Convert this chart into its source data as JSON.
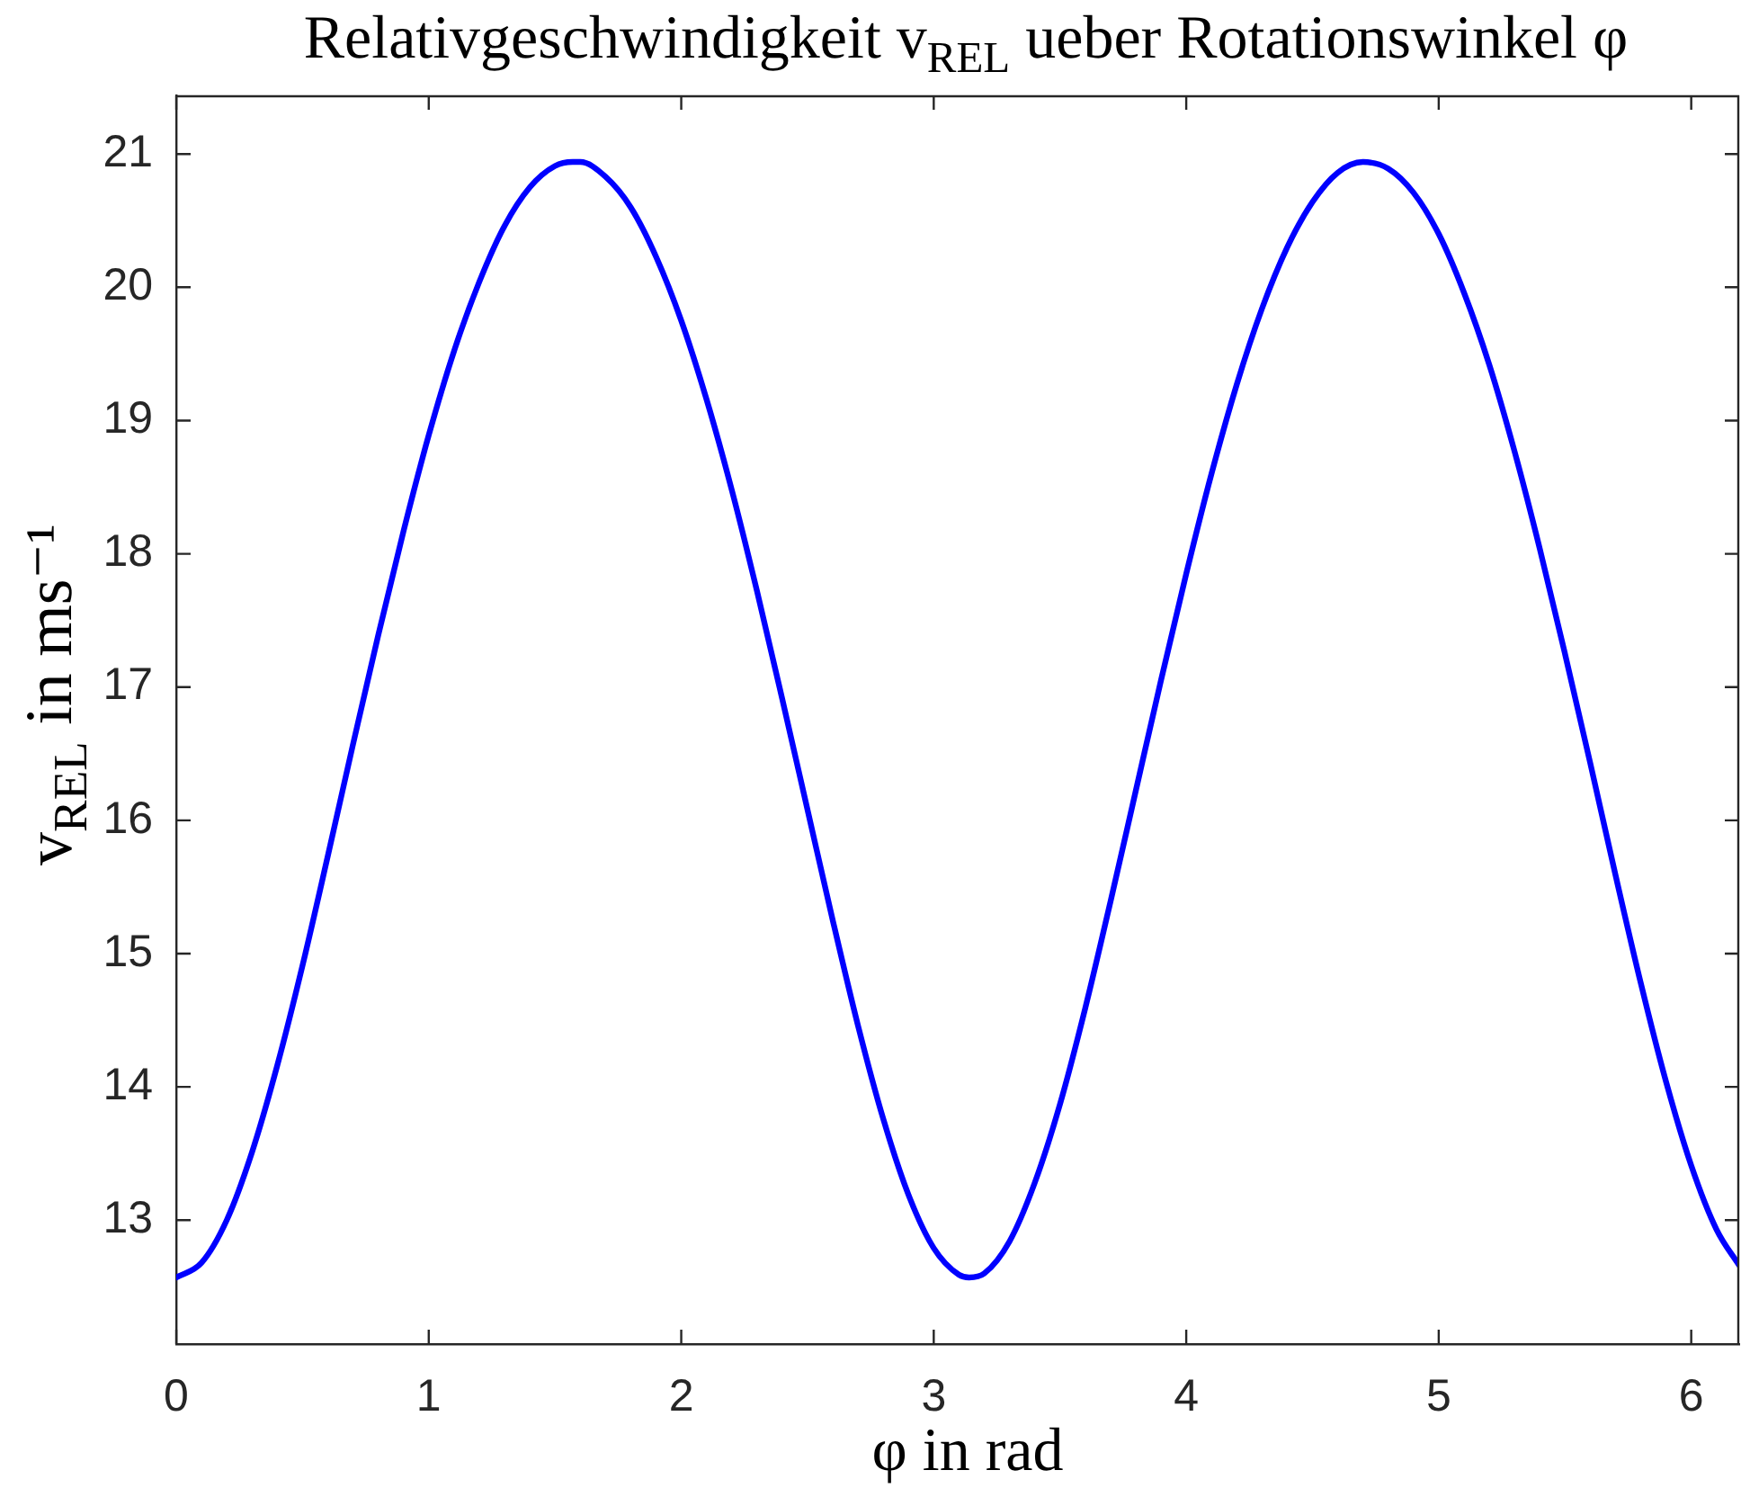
{
  "chart_data": {
    "type": "line",
    "title": "Relativgeschwindigkeit v$_{REL}$ ueber Rotationswinkel φ",
    "xlabel": "φ in rad",
    "ylabel": "v$_{REL}$ in ms⁻¹",
    "x": [
      0,
      0.1,
      0.2,
      0.3,
      0.4,
      0.5,
      0.6,
      0.7,
      0.8,
      0.9,
      1.0,
      1.1,
      1.2,
      1.3,
      1.4,
      1.5,
      1.57,
      1.6,
      1.7,
      1.8,
      1.9,
      2.0,
      2.1,
      2.2,
      2.3,
      2.4,
      2.5,
      2.6,
      2.7,
      2.8,
      2.9,
      3.0,
      3.1,
      3.14,
      3.2,
      3.3,
      3.4,
      3.5,
      3.6,
      3.7,
      3.8,
      3.9,
      4.0,
      4.1,
      4.2,
      4.3,
      4.4,
      4.5,
      4.6,
      4.7,
      4.8,
      4.9,
      5.0,
      5.1,
      5.2,
      5.3,
      5.4,
      5.5,
      5.6,
      5.7,
      5.8,
      5.9,
      6.0,
      6.1,
      6.19
    ],
    "series": [
      {
        "color": "#0000ff",
        "values": [
          12.57,
          12.68,
          13.0,
          13.51,
          14.16,
          14.91,
          15.73,
          16.57,
          17.39,
          18.17,
          18.89,
          19.52,
          20.04,
          20.46,
          20.75,
          20.91,
          20.94,
          20.94,
          20.83,
          20.6,
          20.23,
          19.75,
          19.16,
          18.48,
          17.72,
          16.91,
          16.08,
          15.25,
          14.46,
          13.76,
          13.19,
          12.79,
          12.59,
          12.57,
          12.6,
          12.84,
          13.28,
          13.87,
          14.59,
          15.39,
          16.22,
          17.05,
          17.85,
          18.6,
          19.27,
          19.84,
          20.3,
          20.64,
          20.86,
          20.94,
          20.89,
          20.71,
          20.4,
          19.96,
          19.42,
          18.77,
          18.04,
          17.25,
          16.43,
          15.59,
          14.78,
          14.04,
          13.41,
          12.93,
          12.66
        ]
      }
    ],
    "xlim": [
      0,
      6.19
    ],
    "ylim": [
      12.07,
      21.44
    ],
    "xticks": [
      0,
      1,
      2,
      3,
      4,
      5,
      6
    ],
    "yticks": [
      13,
      14,
      15,
      16,
      17,
      18,
      19,
      20,
      21
    ],
    "grid": false,
    "legend": false,
    "marker": "none",
    "line_style": "solid"
  }
}
